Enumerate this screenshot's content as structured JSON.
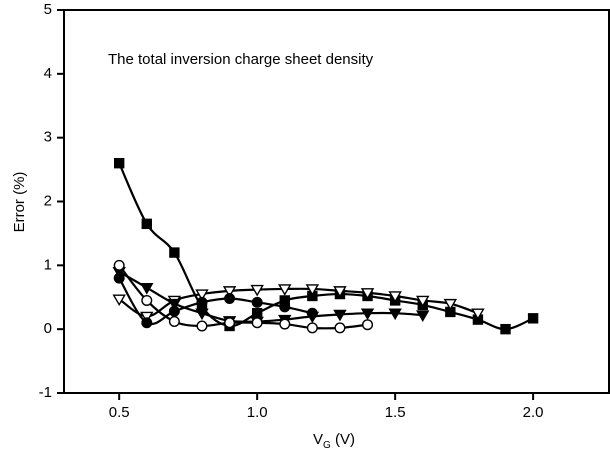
{
  "chart_data": {
    "type": "line",
    "annotation": "The total inversion charge sheet density",
    "xlabel": {
      "main": "V",
      "sub": "G",
      "rest": " (V)"
    },
    "ylabel": "Error (%)",
    "xlim": [
      0.3,
      2.275
    ],
    "ylim": [
      -1,
      5
    ],
    "xticks": [
      0.5,
      {
        "value": 1,
        "label": "1.0"
      },
      1.5,
      {
        "value": 2,
        "label": "2.0"
      }
    ],
    "yticks": [
      -1,
      0,
      1,
      2,
      3,
      4,
      5
    ],
    "series": [
      {
        "color": "#000000",
        "marker": "square",
        "filled": true,
        "x": [
          0.5,
          0.6,
          0.7,
          0.8,
          0.9,
          1.0,
          1.1,
          1.2,
          1.3,
          1.4,
          1.5,
          1.6,
          1.7,
          1.8,
          1.9,
          2.0
        ],
        "values": [
          2.6,
          1.65,
          1.2,
          0.35,
          0.05,
          0.25,
          0.45,
          0.52,
          0.55,
          0.52,
          0.45,
          0.38,
          0.27,
          0.15,
          0.0,
          0.17
        ]
      },
      {
        "color": "#000000",
        "marker": "triangle-down",
        "filled": false,
        "x": [
          0.5,
          0.6,
          0.7,
          0.8,
          0.9,
          1.0,
          1.1,
          1.2,
          1.3,
          1.4,
          1.5,
          1.6,
          1.7,
          1.8
        ],
        "values": [
          0.47,
          0.2,
          0.45,
          0.55,
          0.6,
          0.62,
          0.63,
          0.63,
          0.6,
          0.57,
          0.52,
          0.45,
          0.4,
          0.25
        ]
      },
      {
        "color": "#000000",
        "marker": "triangle-down",
        "filled": true,
        "x": [
          0.5,
          0.6,
          0.7,
          0.8,
          0.9,
          1.0,
          1.1,
          1.2,
          1.3,
          1.4,
          1.5,
          1.6
        ],
        "values": [
          0.9,
          0.65,
          0.4,
          0.25,
          0.13,
          0.12,
          0.15,
          0.2,
          0.23,
          0.25,
          0.25,
          0.22
        ]
      },
      {
        "color": "#000000",
        "marker": "circle",
        "filled": true,
        "x": [
          0.5,
          0.6,
          0.7,
          0.8,
          0.9,
          1.0,
          1.1,
          1.2
        ],
        "values": [
          0.8,
          0.1,
          0.28,
          0.42,
          0.48,
          0.42,
          0.35,
          0.25
        ]
      },
      {
        "color": "#000000",
        "marker": "circle",
        "filled": false,
        "x": [
          0.5,
          0.6,
          0.7,
          0.8,
          0.9,
          1.0,
          1.1,
          1.2,
          1.3,
          1.4
        ],
        "values": [
          1.0,
          0.45,
          0.12,
          0.05,
          0.1,
          0.1,
          0.08,
          0.02,
          0.02,
          0.07
        ]
      }
    ]
  }
}
